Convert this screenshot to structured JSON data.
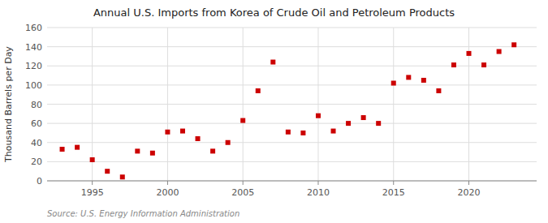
{
  "chart_data": {
    "type": "scatter",
    "title": "Annual U.S. Imports from Korea of Crude Oil and Petroleum Products",
    "y_label": "Thousand Barrels per Day",
    "annotations": [
      "Source: U.S. Energy Information Administration"
    ],
    "x": [
      1993,
      1994,
      1995,
      1996,
      1997,
      1998,
      1999,
      2000,
      2001,
      2002,
      2003,
      2004,
      2005,
      2006,
      2007,
      2008,
      2009,
      2010,
      2011,
      2012,
      2013,
      2014,
      2015,
      2016,
      2017,
      2018,
      2019,
      2020,
      2021,
      2022,
      2023
    ],
    "values": [
      33,
      35,
      22,
      10,
      4,
      31,
      29,
      51,
      52,
      44,
      31,
      40,
      63,
      94,
      124,
      51,
      50,
      68,
      52,
      60,
      66,
      60,
      102,
      108,
      105,
      94,
      121,
      133,
      121,
      135,
      142
    ],
    "color": "#cc0000",
    "marker": "square",
    "xlim": [
      1992.0,
      2024.5
    ],
    "xticks": [
      1995,
      2000,
      2005,
      2010,
      2015,
      2020
    ],
    "ylim": [
      0,
      160
    ],
    "yticks": [
      0,
      20,
      40,
      60,
      80,
      100,
      120,
      140,
      160
    ],
    "grid": true
  }
}
